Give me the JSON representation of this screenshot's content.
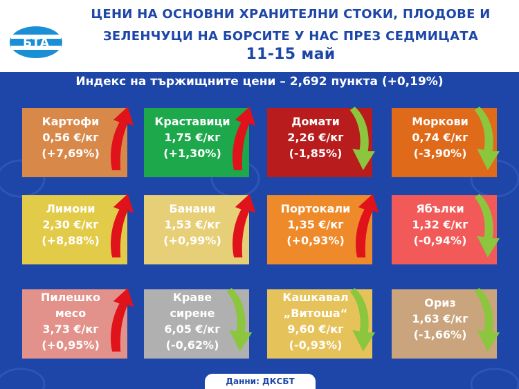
{
  "header": {
    "title_line1": "ЦЕНИ НА ОСНОВНИ ХРАНИТЕЛНИ СТОКИ, ПЛОДОВЕ И",
    "title_line2": "ЗЕЛЕНЧУЦИ НА БОРСИТЕ У НАС ПРЕЗ СЕДМИЦАТА",
    "title_line3": "11-15 май",
    "logo_text": "БТА"
  },
  "index_line": "Индекс на тържищните цени – 2,692 пункта (+0,19%)",
  "products": [
    {
      "name": "Картофи",
      "price": "0,56 €/кг",
      "change": "(+7,69%)",
      "trend": "up",
      "color": "#d8894a"
    },
    {
      "name": "Краставици",
      "price": "1,75 €/кг",
      "change": "(+1,30%)",
      "trend": "up",
      "color": "#1ca84b"
    },
    {
      "name": "Домати",
      "price": "2,26 €/кг",
      "change": "(-1,85%)",
      "trend": "down",
      "color": "#b81c1c"
    },
    {
      "name": "Моркови",
      "price": "0,74 €/кг",
      "change": "(-3,90%)",
      "trend": "down",
      "color": "#df6a1a"
    },
    {
      "name": "Лимони",
      "price": "2,30 €/кг",
      "change": "(+8,88%)",
      "trend": "up",
      "color": "#e3cb4a"
    },
    {
      "name": "Банани",
      "price": "1,53 €/кг",
      "change": "(+0,99%)",
      "trend": "up",
      "color": "#e7cf78"
    },
    {
      "name": "Портокали",
      "price": "1,35 €/кг",
      "change": "(+0,93%)",
      "trend": "up",
      "color": "#ef8a2a"
    },
    {
      "name": "Ябълки",
      "price": "1,32 €/кг",
      "change": "(-0,94%)",
      "trend": "down",
      "color": "#f25a5a"
    },
    {
      "name": "Пилешко месо",
      "name_line1": "Пилешко",
      "name_line2": "месо",
      "price": "3,73 €/кг",
      "change": "(+0,95%)",
      "trend": "up",
      "color": "#e2928a"
    },
    {
      "name": "Краве сирене",
      "name_line1": "Краве",
      "name_line2": "сирене",
      "price": "6,05 €/кг",
      "change": "(-0,62%)",
      "trend": "down",
      "color": "#b0b0b0"
    },
    {
      "name": "Кашкавал „Витоша“",
      "name_line1": "Кашкавал",
      "name_line2": "„Витоша“",
      "price": "9,60 €/кг",
      "change": "(-0,93%)",
      "trend": "down",
      "color": "#e6c25a"
    },
    {
      "name": "Ориз",
      "price": "1,63 €/кг",
      "change": "(-1,66%)",
      "trend": "down",
      "color": "#c9a47c"
    }
  ],
  "source": "Данни: ДКСБТ",
  "colors": {
    "background": "#1d46a8",
    "header": "#ffffff",
    "arrow_up": "#e0121a",
    "arrow_down": "#8cc63e"
  }
}
